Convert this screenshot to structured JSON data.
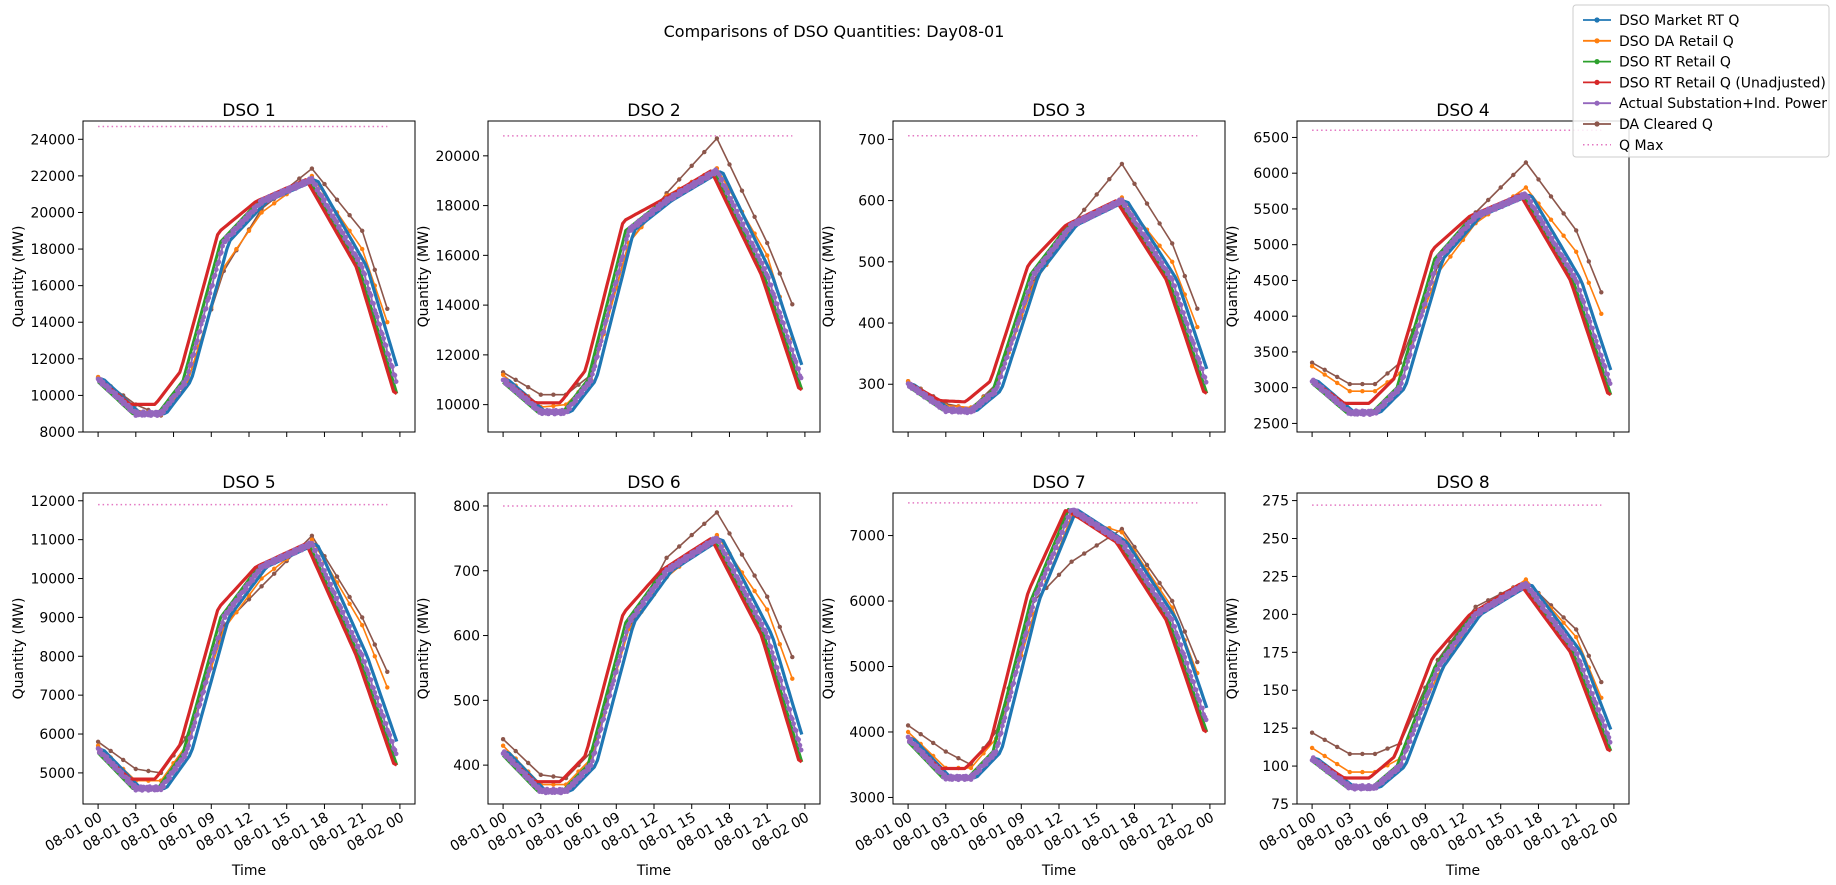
{
  "figure": {
    "title": "Comparisons of DSO Quantities: Day08-01"
  },
  "legend": {
    "placement": "top-right",
    "entries": [
      {
        "label": "DSO Market RT Q",
        "color": "#1f77b4",
        "style": "line-marker"
      },
      {
        "label": "DSO DA Retail Q",
        "color": "#ff7f0e",
        "style": "line-marker"
      },
      {
        "label": "DSO RT Retail Q",
        "color": "#2ca02c",
        "style": "line-marker"
      },
      {
        "label": "DSO RT Retail Q (Unadjusted)",
        "color": "#d62728",
        "style": "line-marker"
      },
      {
        "label": "Actual Substation+Ind. Power",
        "color": "#9467bd",
        "style": "line-marker"
      },
      {
        "label": "DA Cleared Q",
        "color": "#8c564b",
        "style": "line-marker"
      },
      {
        "label": "Q Max",
        "color": "#e377c2",
        "style": "dotted"
      }
    ]
  },
  "chart_data": [
    {
      "type": "line",
      "title": "DSO 1",
      "xlabel": "",
      "ylabel": "Quantity (MW)",
      "ylim": [
        8000,
        25000
      ],
      "yticks": [
        8000,
        10000,
        12000,
        14000,
        16000,
        18000,
        20000,
        22000,
        24000
      ],
      "peak": 22000,
      "qmax": 24700,
      "base": [
        10900,
        9000,
        9000,
        10800,
        18400,
        20600,
        21800,
        17000,
        10100
      ],
      "da": [
        11000,
        9200,
        8950,
        10500,
        17000,
        20000,
        22000,
        18000,
        12000
      ],
      "cleared": [
        11000,
        9500,
        8900,
        10500,
        16800,
        20200,
        22400,
        19000,
        12600
      ]
    },
    {
      "type": "line",
      "title": "DSO 2",
      "xlabel": "",
      "ylabel": "Quantity (MW)",
      "ylim": [
        8900,
        21400
      ],
      "yticks": [
        10000,
        12000,
        14000,
        16000,
        18000,
        20000
      ],
      "peak": 19500,
      "qmax": 20800,
      "base": [
        11000,
        9700,
        9700,
        11000,
        17000,
        18200,
        19400,
        15200,
        10600
      ],
      "da": [
        11200,
        9900,
        10000,
        11000,
        16500,
        18400,
        19500,
        16000,
        11000
      ],
      "cleared": [
        11300,
        10400,
        10400,
        11200,
        16500,
        18500,
        20700,
        16500,
        12800
      ]
    },
    {
      "type": "line",
      "title": "DSO 3",
      "xlabel": "",
      "ylabel": "Quantity (MW)",
      "ylim": [
        222,
        730
      ],
      "yticks": [
        300,
        400,
        500,
        600,
        700
      ],
      "peak": 600,
      "qmax": 706,
      "base": [
        300,
        258,
        256,
        290,
        480,
        560,
        600,
        470,
        285
      ],
      "da": [
        305,
        265,
        262,
        295,
        465,
        555,
        605,
        500,
        340
      ],
      "cleared": [
        305,
        268,
        260,
        300,
        470,
        560,
        660,
        530,
        370
      ]
    },
    {
      "type": "line",
      "title": "DSO 4",
      "xlabel": "",
      "ylabel": "Quantity (MW)",
      "ylim": [
        2380,
        6730
      ],
      "yticks": [
        2500,
        3000,
        3500,
        4000,
        4500,
        5000,
        5500,
        6000,
        6500
      ],
      "peak": 5750,
      "qmax": 6600,
      "base": [
        3100,
        2650,
        2650,
        3000,
        4800,
        5400,
        5700,
        4500,
        2900
      ],
      "da": [
        3300,
        2950,
        2950,
        3200,
        4600,
        5300,
        5800,
        4900,
        3600
      ],
      "cleared": [
        3350,
        3050,
        3050,
        3350,
        4700,
        5450,
        6150,
        5200,
        3900
      ]
    },
    {
      "type": "line",
      "title": "DSO 5",
      "xlabel": "Time",
      "ylabel": "Quantity (MW)",
      "ylim": [
        4200,
        12200
      ],
      "yticks": [
        5000,
        6000,
        7000,
        8000,
        9000,
        10000,
        11000,
        12000
      ],
      "peak": 11000,
      "qmax": 11900,
      "base": [
        5600,
        4600,
        4600,
        5500,
        9000,
        10300,
        10900,
        8000,
        5200
      ],
      "da": [
        5700,
        4800,
        4800,
        5700,
        8700,
        10000,
        11000,
        8800,
        6400
      ],
      "cleared": [
        5800,
        5100,
        5000,
        5900,
        8800,
        9800,
        11100,
        9000,
        6900
      ]
    },
    {
      "type": "line",
      "title": "DSO 6",
      "xlabel": "Time",
      "ylabel": "Quantity (MW)",
      "ylim": [
        340,
        820
      ],
      "yticks": [
        400,
        500,
        600,
        700,
        800
      ],
      "peak": 750,
      "qmax": 800,
      "base": [
        420,
        360,
        360,
        400,
        620,
        700,
        750,
        600,
        405
      ],
      "da": [
        430,
        370,
        370,
        410,
        610,
        690,
        755,
        640,
        480
      ],
      "cleared": [
        440,
        385,
        380,
        420,
        610,
        720,
        790,
        660,
        520
      ]
    },
    {
      "type": "line",
      "title": "DSO 7",
      "xlabel": "Time",
      "ylabel": "Quantity (MW)",
      "ylim": [
        2900,
        7650
      ],
      "yticks": [
        3000,
        4000,
        5000,
        6000,
        7000
      ],
      "peak": 7400,
      "qmax": 7500,
      "base": [
        3900,
        3300,
        3300,
        3700,
        6000,
        7400,
        6900,
        5700,
        4000
      ],
      "da": [
        4000,
        3450,
        3450,
        3900,
        5800,
        7300,
        7050,
        5900,
        4400
      ],
      "cleared": [
        4100,
        3700,
        3500,
        4000,
        6000,
        6600,
        7100,
        6000,
        4600
      ]
    },
    {
      "type": "line",
      "title": "DSO 8",
      "xlabel": "Time",
      "ylabel": "Quantity (MW)",
      "ylim": [
        75,
        280
      ],
      "yticks": [
        75,
        100,
        125,
        150,
        175,
        200,
        225,
        250,
        275
      ],
      "peak": 222,
      "qmax": 272,
      "base": [
        105,
        86,
        86,
        100,
        165,
        200,
        220,
        175,
        110
      ],
      "da": [
        112,
        96,
        96,
        105,
        160,
        200,
        223,
        185,
        125
      ],
      "cleared": [
        122,
        108,
        108,
        115,
        170,
        205,
        222,
        190,
        138
      ]
    }
  ],
  "x_axis": {
    "ticks": [
      "08-01 00",
      "08-01 03",
      "08-01 06",
      "08-01 09",
      "08-01 12",
      "08-01 15",
      "08-01 18",
      "08-01 21",
      "08-02 00"
    ],
    "range_hours": [
      -1.2,
      25.2
    ]
  }
}
